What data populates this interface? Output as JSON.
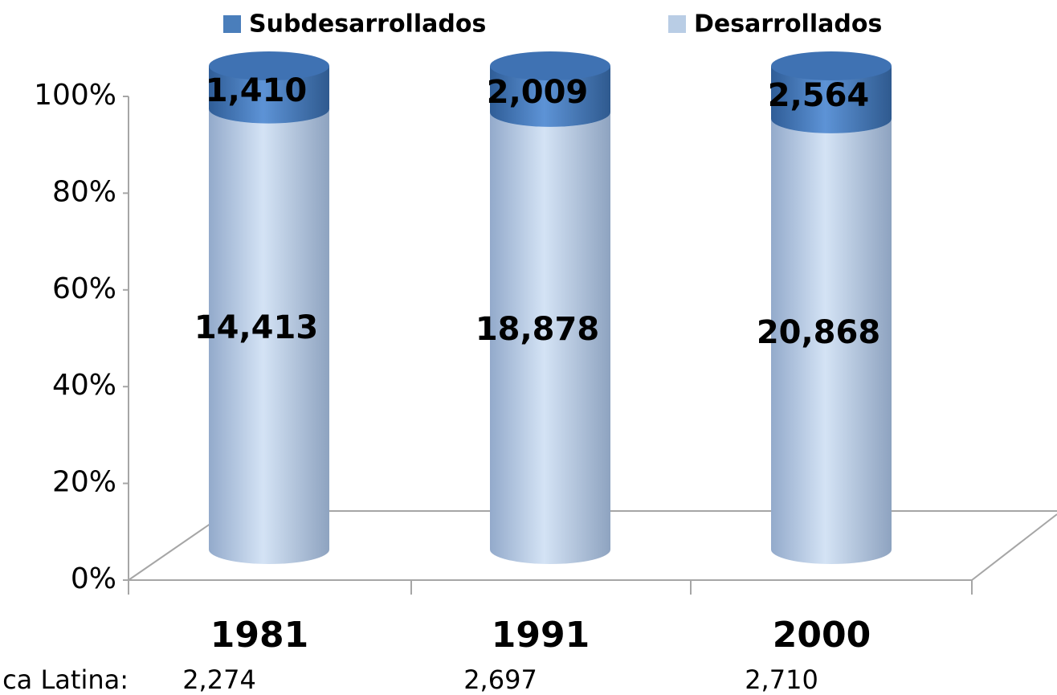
{
  "chart_data": {
    "type": "cylinder",
    "stacking": "percent",
    "categories": [
      "1981",
      "1991",
      "2000"
    ],
    "series": [
      {
        "name": "Subdesarrollados",
        "color": "#4a7ebb",
        "values": [
          1410,
          2009,
          2564
        ],
        "value_labels": [
          "1,410",
          "2,009",
          "2,564"
        ]
      },
      {
        "name": "Desarrollados",
        "color": "#b9cde5",
        "values": [
          14413,
          18878,
          20868
        ],
        "value_labels": [
          "14,413",
          "18,878",
          "20,868"
        ]
      }
    ],
    "ylim": [
      0,
      100
    ],
    "yticks": [
      {
        "value": 0,
        "label": "0%"
      },
      {
        "value": 20,
        "label": "20%"
      },
      {
        "value": 40,
        "label": "40%"
      },
      {
        "value": 60,
        "label": "60%"
      },
      {
        "value": 80,
        "label": "80%"
      },
      {
        "value": 100,
        "label": "100%"
      }
    ],
    "footer_label": "ca Latina:",
    "footer_values": [
      "2,274",
      "2,697",
      "2,710"
    ]
  }
}
